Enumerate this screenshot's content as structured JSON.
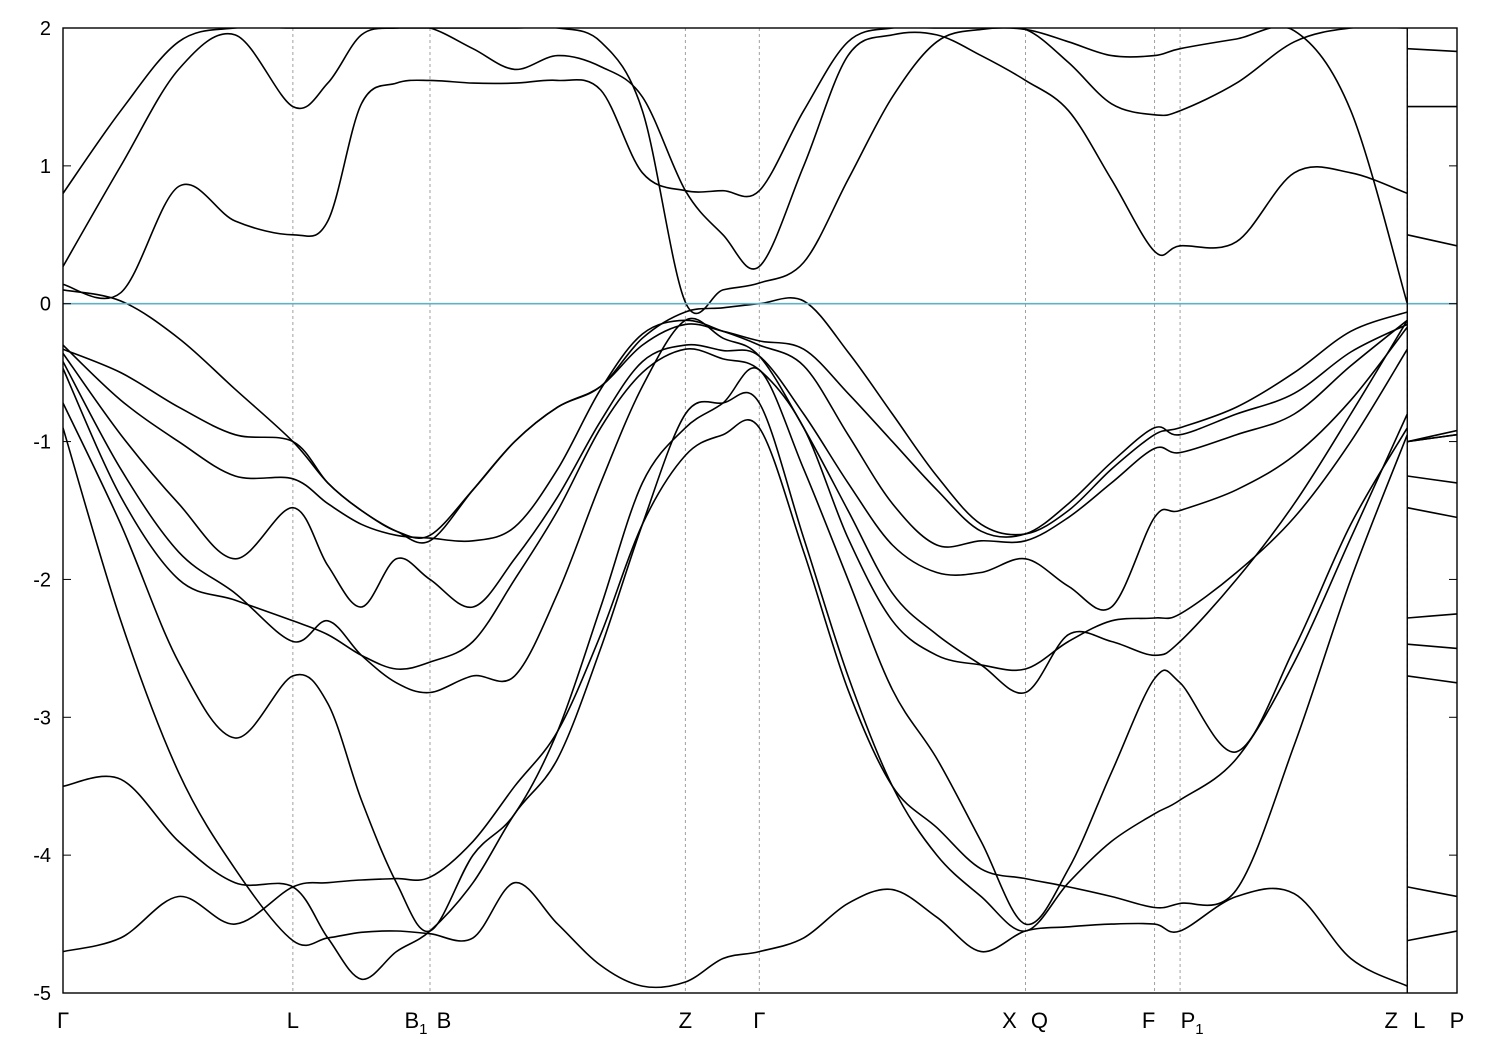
{
  "chart_data": {
    "type": "line",
    "title": "",
    "xlabel": "",
    "ylabel": "",
    "ylim": [
      -5,
      2
    ],
    "yticks": [
      2,
      1,
      0,
      -1,
      -2,
      -3,
      -4,
      -5
    ],
    "fermi_level": 0,
    "colors": {
      "bands": "#000000",
      "fermi": "#5fb0c8",
      "kpoint_lines": "#a0a0a0"
    },
    "grid": false,
    "xlim": [
      0,
      10
    ],
    "kpoints": [
      {
        "label": "Γ",
        "x": 0.0
      },
      {
        "label": "L",
        "x": 1.71
      },
      {
        "label": "B",
        "sub": "1",
        "x": 2.73
      },
      {
        "label": "B",
        "x": 2.73
      },
      {
        "label": "Z",
        "x": 4.63
      },
      {
        "label": "Γ",
        "x": 5.18
      },
      {
        "label": "X",
        "x": 7.16
      },
      {
        "label": "Q",
        "x": 7.16
      },
      {
        "label": "F",
        "x": 8.12
      },
      {
        "label": "P",
        "sub": "1",
        "x": 8.31
      },
      {
        "label": "Z",
        "x": 10.0
      },
      {
        "label": "L",
        "x": 10.0
      },
      {
        "label": "P",
        "x": 10.37
      }
    ],
    "segment_x": {
      "main": [
        0,
        0.43,
        0.86,
        1.28,
        1.71,
        1.97,
        2.22,
        2.48,
        2.73,
        3.05,
        3.36,
        3.68,
        4.0,
        4.31,
        4.63,
        4.91,
        5.18,
        5.51,
        5.84,
        6.17,
        6.5,
        6.83,
        7.16,
        7.48,
        7.8,
        8.12,
        8.31,
        8.73,
        9.16,
        9.58,
        10.0
      ],
      "extra": [
        10.0,
        10.37
      ]
    },
    "series": [
      {
        "values": [
          -0.9,
          -2.3,
          -3.4,
          -4.1,
          -4.62,
          -4.6,
          -4.56,
          -4.55,
          -4.57,
          -4.6,
          -4.2,
          -4.5,
          -4.8,
          -4.95,
          -4.92,
          -4.75,
          -4.7,
          -4.6,
          -4.35,
          -4.25,
          -4.45,
          -4.7,
          -4.55,
          -4.52,
          -4.5,
          -4.5,
          -4.55,
          -4.3,
          -4.28,
          -4.75,
          -4.95
        ],
        "extra": [
          -4.62,
          -4.55
        ]
      },
      {
        "values": [
          -4.7,
          -4.6,
          -4.3,
          -4.5,
          -4.23,
          -4.2,
          -4.18,
          -4.17,
          -4.16,
          -3.9,
          -3.5,
          -3.1,
          -2.4,
          -1.6,
          -1.1,
          -0.95,
          -0.9,
          -1.8,
          -2.8,
          -3.5,
          -3.8,
          -4.1,
          -4.17,
          -4.23,
          -4.3,
          -4.38,
          -4.35,
          -4.25,
          -3.2,
          -2.0,
          -0.95
        ],
        "extra": [
          -4.23,
          -4.3
        ]
      },
      {
        "values": [
          -3.5,
          -3.45,
          -3.9,
          -4.2,
          -4.23,
          -4.6,
          -4.9,
          -4.7,
          -4.55,
          -4.2,
          -3.7,
          -3.3,
          -2.5,
          -1.6,
          -0.8,
          -0.72,
          -0.72,
          -1.7,
          -2.7,
          -3.5,
          -4.0,
          -4.3,
          -4.55,
          -4.2,
          -3.9,
          -3.7,
          -3.6,
          -3.3,
          -2.6,
          -1.7,
          -0.8
        ],
        "extra": [
          -2.7,
          -2.75
        ]
      },
      {
        "values": [
          -0.72,
          -1.6,
          -2.6,
          -3.15,
          -2.7,
          -2.9,
          -3.6,
          -4.2,
          -4.55,
          -4.0,
          -3.7,
          -3.1,
          -2.2,
          -1.3,
          -0.9,
          -0.72,
          -0.48,
          -1.2,
          -2.0,
          -2.8,
          -3.3,
          -3.9,
          -4.5,
          -4.1,
          -3.4,
          -2.72,
          -2.75,
          -3.25,
          -2.5,
          -1.6,
          -0.9
        ],
        "extra": [
          -2.47,
          -2.5
        ]
      },
      {
        "values": [
          -0.47,
          -1.4,
          -2.0,
          -2.15,
          -2.3,
          -2.4,
          -2.55,
          -2.65,
          -2.6,
          -2.45,
          -2.0,
          -1.5,
          -0.9,
          -0.5,
          -0.33,
          -0.4,
          -0.48,
          -0.9,
          -1.7,
          -2.3,
          -2.55,
          -2.62,
          -2.65,
          -2.45,
          -2.3,
          -2.28,
          -2.25,
          -1.95,
          -1.55,
          -1.0,
          -0.33
        ],
        "extra": [
          -2.28,
          -2.25
        ]
      },
      {
        "values": [
          -0.42,
          -1.2,
          -1.8,
          -2.1,
          -2.45,
          -2.3,
          -2.55,
          -2.75,
          -2.82,
          -2.7,
          -2.7,
          -2.1,
          -1.3,
          -0.6,
          -0.12,
          -0.25,
          -0.38,
          -0.9,
          -1.5,
          -2.1,
          -2.4,
          -2.62,
          -2.82,
          -2.4,
          -2.45,
          -2.55,
          -2.45,
          -2.0,
          -1.45,
          -0.8,
          -0.12
        ],
        "extra": [
          -1.48,
          -1.55
        ]
      },
      {
        "values": [
          -0.36,
          -0.95,
          -1.45,
          -1.85,
          -1.48,
          -1.9,
          -2.2,
          -1.85,
          -2.0,
          -2.2,
          -1.85,
          -1.4,
          -0.85,
          -0.42,
          -0.3,
          -0.34,
          -0.38,
          -0.8,
          -1.3,
          -1.75,
          -1.95,
          -1.95,
          -1.85,
          -2.05,
          -2.2,
          -1.55,
          -1.5,
          -1.35,
          -1.1,
          -0.7,
          -0.17
        ],
        "extra": [
          -1.25,
          -1.3
        ]
      },
      {
        "values": [
          -0.3,
          -0.7,
          -1.0,
          -1.25,
          -1.27,
          -1.45,
          -1.6,
          -1.68,
          -1.7,
          -1.72,
          -1.62,
          -1.2,
          -0.62,
          -0.22,
          -0.12,
          -0.2,
          -0.3,
          -0.45,
          -0.95,
          -1.45,
          -1.75,
          -1.72,
          -1.72,
          -1.55,
          -1.3,
          -1.05,
          -1.08,
          -0.95,
          -0.8,
          -0.45,
          -0.12
        ],
        "extra": [
          -1.0,
          -0.95
        ]
      },
      {
        "values": [
          -0.33,
          -0.5,
          -0.75,
          -0.95,
          -1.0,
          -1.3,
          -1.5,
          -1.65,
          -1.68,
          -1.35,
          -1.0,
          -0.75,
          -0.6,
          -0.3,
          -0.15,
          -0.2,
          -0.27,
          -0.33,
          -0.65,
          -1.0,
          -1.35,
          -1.65,
          -1.67,
          -1.45,
          -1.15,
          -0.9,
          -0.95,
          -0.8,
          -0.65,
          -0.35,
          -0.15
        ],
        "extra": [
          -1.0,
          -0.95
        ]
      },
      {
        "values": [
          0.1,
          0.02,
          -0.25,
          -0.62,
          -1.0,
          -1.3,
          -1.5,
          -1.65,
          -1.72,
          -1.35,
          -1.0,
          -0.75,
          -0.6,
          -0.25,
          -0.06,
          -0.03,
          0.0,
          0.02,
          -0.35,
          -0.8,
          -1.25,
          -1.6,
          -1.67,
          -1.5,
          -1.2,
          -0.95,
          -0.9,
          -0.75,
          -0.5,
          -0.2,
          -0.06
        ],
        "extra": [
          -1.0,
          -0.92
        ]
      },
      {
        "values": [
          0.14,
          0.08,
          0.85,
          0.6,
          0.5,
          0.6,
          1.45,
          1.6,
          1.62,
          1.6,
          1.6,
          1.62,
          1.55,
          0.95,
          0.82,
          0.82,
          0.82,
          1.4,
          1.9,
          2.0,
          2.0,
          2.0,
          1.99,
          1.75,
          1.45,
          1.37,
          1.4,
          1.6,
          1.9,
          2.0,
          2.0
        ],
        "extra": [
          1.85,
          1.83
        ]
      },
      {
        "values": [
          0.27,
          1.0,
          1.7,
          1.95,
          1.43,
          1.6,
          1.95,
          2.0,
          2.0,
          1.85,
          1.7,
          1.8,
          1.72,
          1.5,
          0.82,
          0.5,
          0.27,
          1.0,
          1.8,
          1.95,
          1.95,
          1.8,
          1.62,
          1.4,
          0.9,
          0.38,
          0.42,
          0.45,
          0.95,
          0.95,
          0.8
        ],
        "extra": [
          1.43,
          1.43
        ]
      },
      {
        "values": [
          0.8,
          1.4,
          1.9,
          2.0,
          2.0,
          2.0,
          2.0,
          2.0,
          2.0,
          2.0,
          2.0,
          2.0,
          1.9,
          1.4,
          0.01,
          0.1,
          0.15,
          0.3,
          0.9,
          1.5,
          1.9,
          1.99,
          1.99,
          1.9,
          1.8,
          1.8,
          1.85,
          1.92,
          1.98,
          1.4,
          0.0
        ],
        "extra": [
          0.5,
          0.42
        ]
      }
    ]
  }
}
